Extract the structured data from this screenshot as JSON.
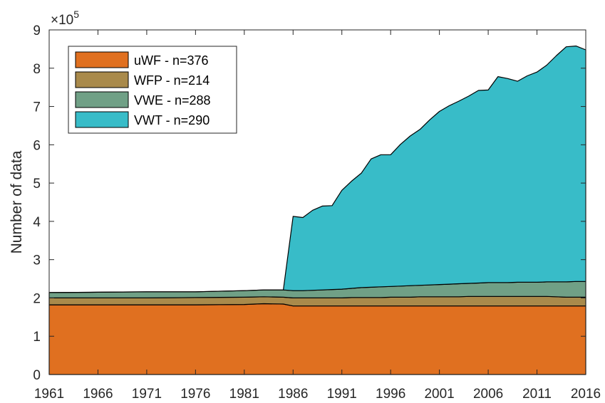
{
  "chart_data": {
    "type": "area",
    "stacked": true,
    "ylabel": "Number of data",
    "xlabel": "",
    "title": "",
    "y_multiplier": "×10",
    "y_multiplier_exp": "5",
    "xlim": [
      1961,
      2016
    ],
    "ylim": [
      0,
      9
    ],
    "x_ticks": [
      "1961",
      "1966",
      "1971",
      "1976",
      "1981",
      "1986",
      "1991",
      "1996",
      "2001",
      "2006",
      "2011",
      "2016"
    ],
    "y_ticks": [
      "0",
      "1",
      "2",
      "3",
      "4",
      "5",
      "6",
      "7",
      "8",
      "9"
    ],
    "grid": false,
    "legend_position": "top-left",
    "x": [
      1961,
      1966,
      1971,
      1976,
      1981,
      1983,
      1985,
      1986,
      1987,
      1988,
      1989,
      1990,
      1991,
      1992,
      1993,
      1994,
      1995,
      1996,
      1997,
      1998,
      1999,
      2000,
      2001,
      2002,
      2003,
      2004,
      2005,
      2006,
      2007,
      2008,
      2009,
      2010,
      2011,
      2012,
      2013,
      2014,
      2015,
      2016
    ],
    "series": [
      {
        "name": "uWF - n=376",
        "color": "#E07020",
        "values": [
          1.82,
          1.82,
          1.82,
          1.82,
          1.83,
          1.85,
          1.84,
          1.79,
          1.79,
          1.79,
          1.79,
          1.79,
          1.79,
          1.79,
          1.79,
          1.79,
          1.79,
          1.79,
          1.79,
          1.79,
          1.79,
          1.79,
          1.79,
          1.79,
          1.79,
          1.79,
          1.79,
          1.79,
          1.79,
          1.79,
          1.79,
          1.79,
          1.79,
          1.79,
          1.79,
          1.79,
          1.79,
          1.79
        ]
      },
      {
        "name": "WFP - n=214",
        "color": "#A98A4B",
        "values": [
          0.18,
          0.18,
          0.18,
          0.19,
          0.19,
          0.18,
          0.18,
          0.21,
          0.21,
          0.21,
          0.21,
          0.21,
          0.21,
          0.22,
          0.22,
          0.22,
          0.22,
          0.23,
          0.23,
          0.23,
          0.24,
          0.24,
          0.24,
          0.24,
          0.24,
          0.25,
          0.25,
          0.25,
          0.25,
          0.25,
          0.25,
          0.25,
          0.25,
          0.25,
          0.24,
          0.23,
          0.23,
          0.23
        ]
      },
      {
        "name": "VWE - n=288",
        "color": "#70A086",
        "values": [
          0.14,
          0.15,
          0.16,
          0.15,
          0.17,
          0.18,
          0.19,
          0.19,
          0.19,
          0.2,
          0.21,
          0.22,
          0.23,
          0.24,
          0.26,
          0.27,
          0.28,
          0.28,
          0.29,
          0.3,
          0.3,
          0.31,
          0.32,
          0.33,
          0.34,
          0.34,
          0.35,
          0.36,
          0.36,
          0.36,
          0.37,
          0.37,
          0.37,
          0.38,
          0.39,
          0.4,
          0.41,
          0.41
        ]
      },
      {
        "name": "VWT - n=290",
        "color": "#38BCC8",
        "values": [
          0,
          0,
          0,
          0,
          0,
          0,
          0,
          1.94,
          1.91,
          2.09,
          2.19,
          2.19,
          2.58,
          2.8,
          2.99,
          3.35,
          3.45,
          3.44,
          3.7,
          3.91,
          4.07,
          4.31,
          4.52,
          4.66,
          4.77,
          4.89,
          5.03,
          5.03,
          5.38,
          5.33,
          5.25,
          5.39,
          5.49,
          5.66,
          5.91,
          6.14,
          6.15,
          6.05
        ]
      }
    ]
  }
}
